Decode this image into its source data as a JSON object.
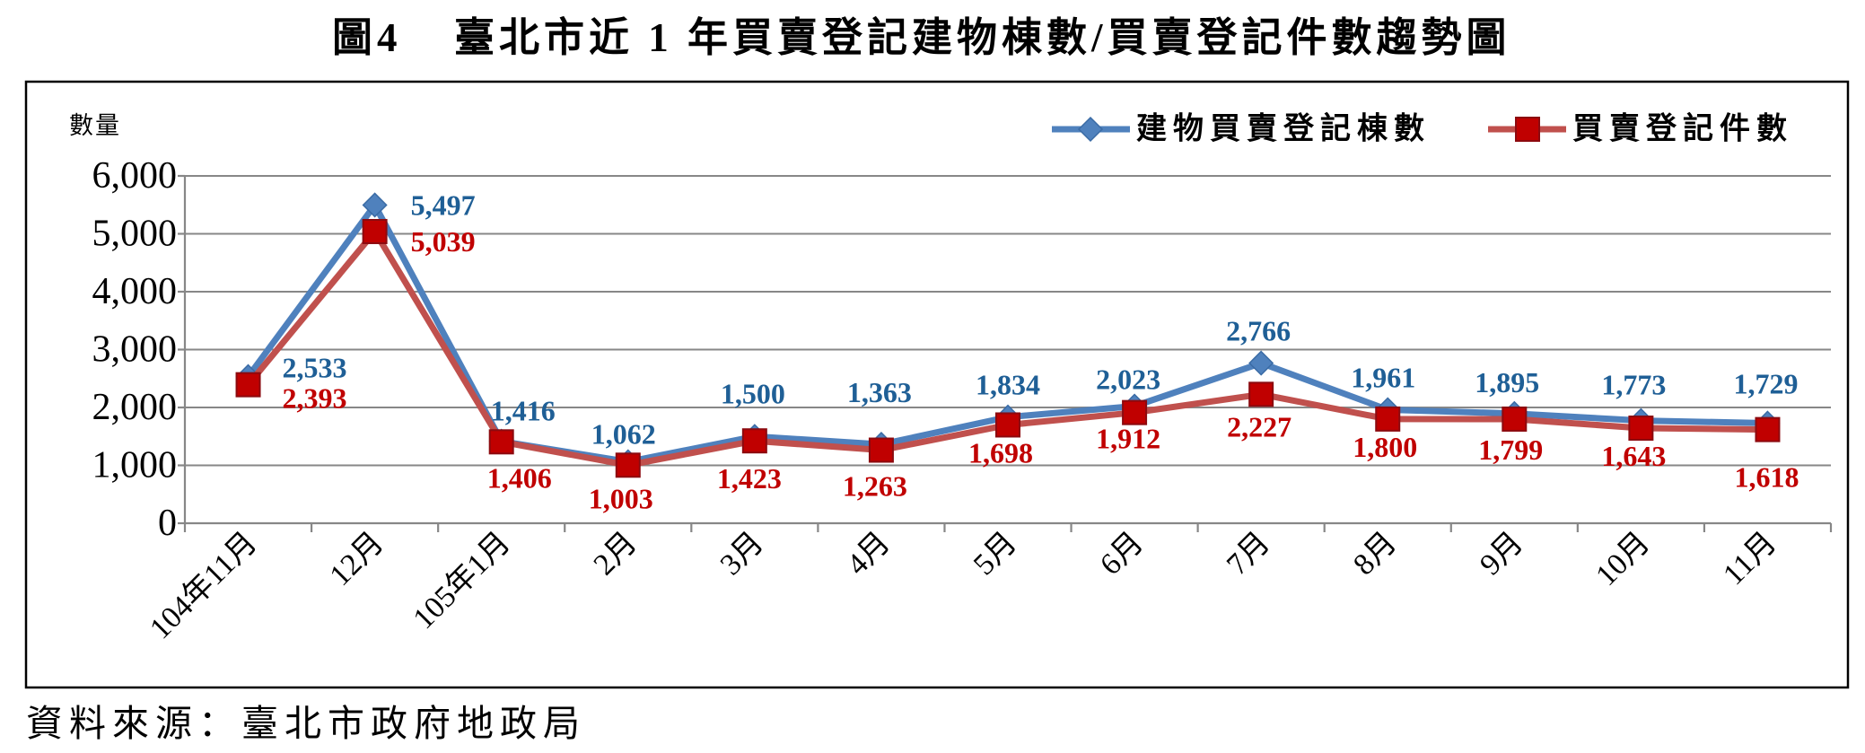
{
  "figure_number": "圖4",
  "source": "資料來源：臺北市政府地政局",
  "chart_data": {
    "type": "line",
    "title": "臺北市近 1 年買賣登記建物棟數/買賣登記件數趨勢圖",
    "xlabel": "",
    "ylabel": "數量",
    "ylim": [
      0,
      6000
    ],
    "yticks": [
      0,
      1000,
      2000,
      3000,
      4000,
      5000,
      6000
    ],
    "ytick_labels": [
      "0",
      "1,000",
      "2,000",
      "3,000",
      "4,000",
      "5,000",
      "6,000"
    ],
    "categories": [
      "104年11月",
      "12月",
      "105年1月",
      "2月",
      "3月",
      "4月",
      "5月",
      "6月",
      "7月",
      "8月",
      "9月",
      "10月",
      "11月"
    ],
    "grid": true,
    "legend": "top-right",
    "series": [
      {
        "name": "建物買賣登記棟數",
        "color": "#4F81BD",
        "marker": "diamond",
        "label_color": "#1F5F96",
        "values": [
          2533,
          5497,
          1416,
          1062,
          1500,
          1363,
          1834,
          2023,
          2766,
          1961,
          1895,
          1773,
          1729
        ],
        "labels": [
          "2,533",
          "5,497",
          "1,416",
          "1,062",
          "1,500",
          "1,363",
          "1,834",
          "2,023",
          "2,766",
          "1,961",
          "1,895",
          "1,773",
          "1,729"
        ]
      },
      {
        "name": "買賣登記件數",
        "color": "#C0504D",
        "marker": "square",
        "label_color": "#C00000",
        "values": [
          2393,
          5039,
          1406,
          1003,
          1423,
          1263,
          1698,
          1912,
          2227,
          1800,
          1799,
          1643,
          1618
        ],
        "labels": [
          "2,393",
          "5,039",
          "1,406",
          "1,003",
          "1,423",
          "1,263",
          "1,698",
          "1,912",
          "2,227",
          "1,800",
          "1,799",
          "1,643",
          "1,618"
        ]
      }
    ]
  }
}
